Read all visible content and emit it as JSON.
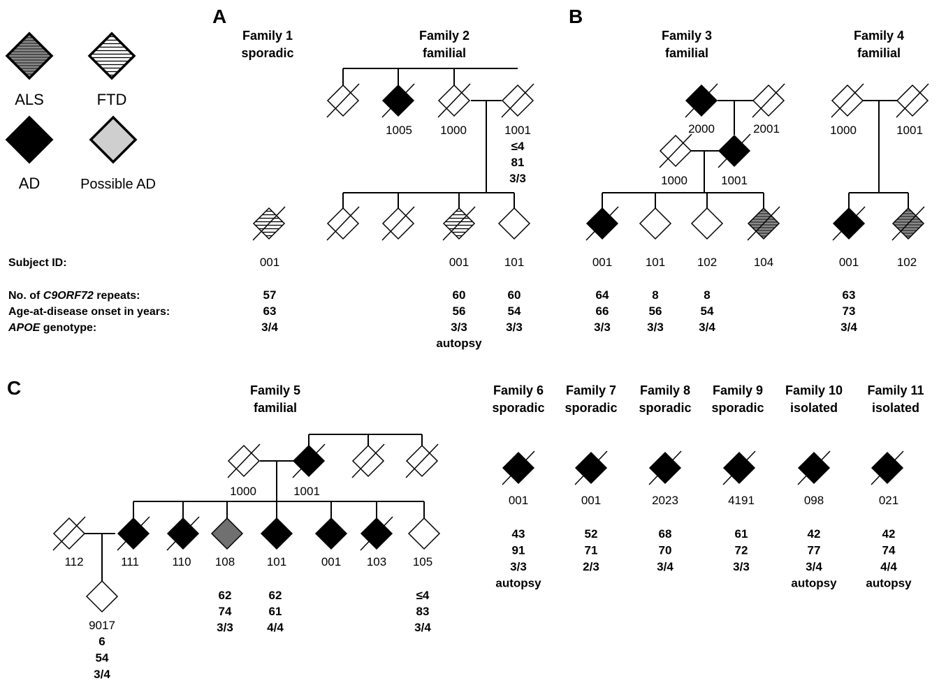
{
  "colors": {
    "ad": "#000000",
    "possible_ad": "#cfcfcf",
    "grey_108": "#707070",
    "unaffected": "#ffffff",
    "line": "#000000"
  },
  "legend": {
    "als": "ALS",
    "ftd": "FTD",
    "ad": "AD",
    "possible_ad": "Possible AD"
  },
  "panels": {
    "a": "A",
    "b": "B",
    "c": "C"
  },
  "row_labels": {
    "subject_id": "Subject ID:",
    "repeats_prefix": "No. of ",
    "repeats_gene": "C9ORF72",
    "repeats_suffix": " repeats:",
    "onset": "Age-at-disease onset in years:",
    "apoe_gene": "APOE",
    "apoe_suffix": " genotype:"
  },
  "families": {
    "f1": {
      "name": "Family  1",
      "type": "sporadic"
    },
    "f2": {
      "name": "Family  2",
      "type": "familial"
    },
    "f3": {
      "name": "Family  3",
      "type": "familial"
    },
    "f4": {
      "name": "Family  4",
      "type": "familial"
    },
    "f5": {
      "name": "Family  5",
      "type": "familial"
    },
    "f6": {
      "name": "Family  6",
      "type": "sporadic"
    },
    "f7": {
      "name": "Family  7",
      "type": "sporadic"
    },
    "f8": {
      "name": "Family  8",
      "type": "sporadic"
    },
    "f9": {
      "name": "Family  9",
      "type": "sporadic"
    },
    "f10": {
      "name": "Family 10",
      "type": "isolated"
    },
    "f11": {
      "name": "Family 11",
      "type": "isolated"
    }
  },
  "ids": {
    "f1_001": "001",
    "f2_1005": "1005",
    "f2_1000": "1000",
    "f2_1001": "1001",
    "f2_001": "001",
    "f2_101": "101",
    "f3_2000": "2000",
    "f3_2001": "2001",
    "f3_1000": "1000",
    "f3_1001": "1001",
    "f3_001": "001",
    "f3_101": "101",
    "f3_102": "102",
    "f3_104": "104",
    "f4_1000": "1000",
    "f4_1001": "1001",
    "f4_001": "001",
    "f4_102": "102",
    "f5_1000": "1000",
    "f5_1001": "1001",
    "f5_112": "112",
    "f5_111": "111",
    "f5_110": "110",
    "f5_108": "108",
    "f5_101": "101",
    "f5_001": "001",
    "f5_103": "103",
    "f5_105": "105",
    "f5_9017": "9017",
    "f6_001": "001",
    "f7_001": "001",
    "f8_2023": "2023",
    "f9_4191": "4191",
    "f10_098": "098",
    "f11_021": "021"
  },
  "values": {
    "f1_001": {
      "repeats": "57",
      "onset": "63",
      "apoe": "3/4"
    },
    "f2_1001": {
      "repeats": "≤4",
      "onset": "81",
      "apoe": "3/3"
    },
    "f2_001": {
      "repeats": "60",
      "onset": "56",
      "apoe": "3/3",
      "note": "autopsy"
    },
    "f2_101": {
      "repeats": "60",
      "onset": "54",
      "apoe": "3/3"
    },
    "f3_001": {
      "repeats": "64",
      "onset": "66",
      "apoe": "3/3"
    },
    "f3_101": {
      "repeats": "8",
      "onset": "56",
      "apoe": "3/3"
    },
    "f3_102": {
      "repeats": "8",
      "onset": "54",
      "apoe": "3/4"
    },
    "f4_001": {
      "repeats": "63",
      "onset": "73",
      "apoe": "3/4"
    },
    "f5_108": {
      "repeats": "62",
      "onset": "74",
      "apoe": "3/3"
    },
    "f5_101": {
      "repeats": "62",
      "onset": "61",
      "apoe": "4/4"
    },
    "f5_105": {
      "repeats": "≤4",
      "onset": "83",
      "apoe": "3/4"
    },
    "f5_9017": {
      "repeats": "6",
      "onset": "54",
      "apoe": "3/4"
    },
    "f6_001": {
      "repeats": "43",
      "onset": "91",
      "apoe": "3/3",
      "note": "autopsy"
    },
    "f7_001": {
      "repeats": "52",
      "onset": "71",
      "apoe": "2/3"
    },
    "f8_2023": {
      "repeats": "68",
      "onset": "70",
      "apoe": "3/4"
    },
    "f9_4191": {
      "repeats": "61",
      "onset": "72",
      "apoe": "3/3"
    },
    "f10_098": {
      "repeats": "42",
      "onset": "77",
      "apoe": "3/4",
      "note": "autopsy"
    },
    "f11_021": {
      "repeats": "42",
      "onset": "74",
      "apoe": "4/4",
      "note": "autopsy"
    }
  }
}
